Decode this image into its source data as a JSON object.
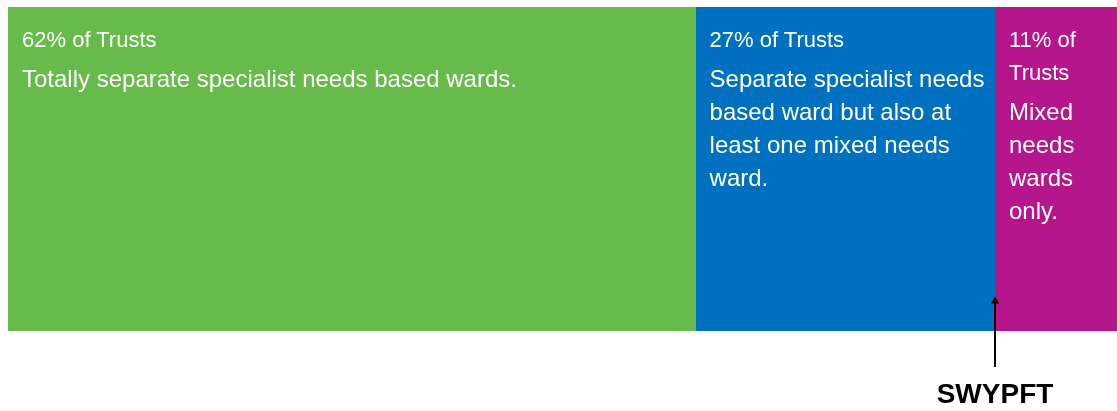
{
  "chart_data": {
    "type": "bar",
    "orientation": "horizontal",
    "stacked": true,
    "categories": [
      null
    ],
    "xlim": [
      0,
      100
    ],
    "tick_labels": false,
    "series": [
      {
        "name": "Totally separate specialist needs based wards.",
        "color": "#66bb4a",
        "values": [
          62
        ],
        "value_labels": [
          "62% of Trusts"
        ]
      },
      {
        "name": "Separate specialist needs based ward but also at least one mixed needs ward.",
        "color": "#0070c0",
        "values": [
          27
        ],
        "value_labels": [
          "27% of Trusts"
        ]
      },
      {
        "name": "Mixed needs wards only.",
        "color": "#b5168b",
        "values": [
          11
        ],
        "value_labels": [
          "11% of Trusts"
        ]
      }
    ],
    "annotations": [
      {
        "text": "SWYPFT",
        "x": 89
      }
    ]
  }
}
